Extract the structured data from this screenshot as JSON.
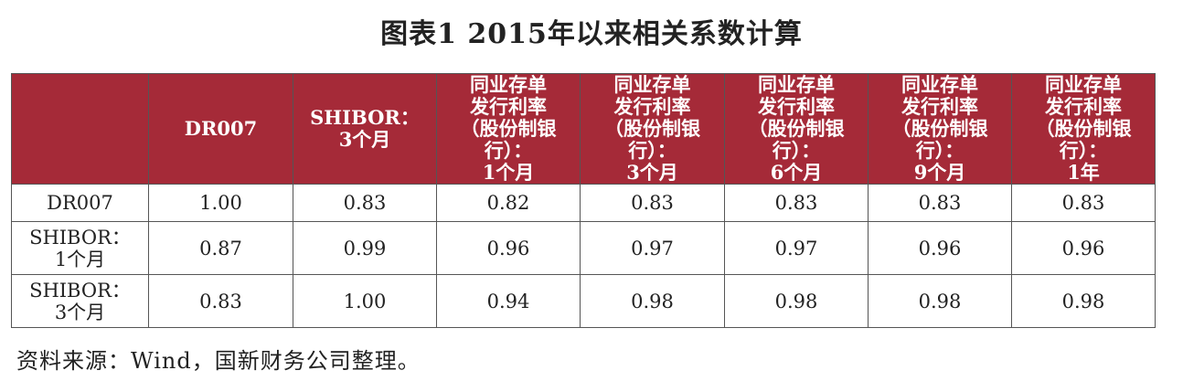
{
  "title": "图表1 2015年以来相关系数计算",
  "table": {
    "header": [
      [
        "DR007"
      ],
      [
        "SHIBOR：",
        "3个月"
      ],
      [
        "同业存单",
        "发行利率",
        "（股份制银行）：",
        "1个月"
      ],
      [
        "同业存单",
        "发行利率",
        "（股份制银行）：",
        "3个月"
      ],
      [
        "同业存单",
        "发行利率",
        "（股份制银行）：",
        "6个月"
      ],
      [
        "同业存单",
        "发行利率",
        "（股份制银行）：",
        "9个月"
      ],
      [
        "同业存单",
        "发行利率",
        "（股份制银行）：",
        "1年"
      ]
    ],
    "rows": [
      {
        "label": [
          "DR007"
        ],
        "cells": [
          "1.00",
          "0.83",
          "0.82",
          "0.83",
          "0.83",
          "0.83",
          "0.83"
        ]
      },
      {
        "label": [
          "SHIBOR：",
          "1个月"
        ],
        "cells": [
          "0.87",
          "0.99",
          "0.96",
          "0.97",
          "0.97",
          "0.96",
          "0.96"
        ]
      },
      {
        "label": [
          "SHIBOR：",
          "3个月"
        ],
        "cells": [
          "0.83",
          "1.00",
          "0.94",
          "0.98",
          "0.98",
          "0.98",
          "0.98"
        ]
      }
    ]
  },
  "source": "资料来源：Wind，国新财务公司整理。"
}
